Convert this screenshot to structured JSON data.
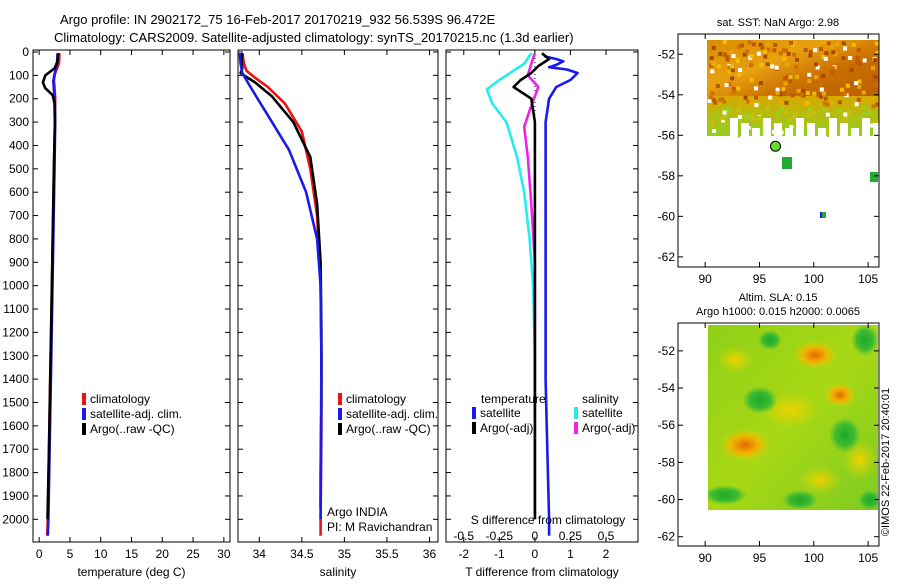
{
  "header": {
    "line1": "Argo profile: IN 2902172_75 16-Feb-2017 20170219_932 56.539S 96.472E",
    "line2": "Climatology: CARS2009. Satellite-adjusted climatology: synTS_20170215.nc (1.3d earlier)"
  },
  "colors": {
    "climatology": "#ee1111",
    "satellite": "#1a1aee",
    "argo": "#000000",
    "sat_salinity": "#22eeee",
    "argo_salinity": "#ee22ee"
  },
  "chart_data": [
    {
      "type": "line",
      "id": "temperature",
      "xlabel": "temperature (deg C)",
      "ylabel": "",
      "xlim": [
        -1,
        31
      ],
      "ylim": [
        2080,
        0
      ],
      "xticks": [
        0,
        5,
        10,
        15,
        20,
        25,
        30
      ],
      "xticklabels": [
        "0",
        "5",
        "10",
        "15",
        "20",
        "25",
        "30"
      ],
      "yticks": [
        0,
        100,
        200,
        300,
        400,
        500,
        600,
        700,
        800,
        900,
        1000,
        1100,
        1200,
        1300,
        1400,
        1500,
        1600,
        1700,
        1800,
        1900,
        2000
      ],
      "yticklabels": [
        "0",
        "100",
        "200",
        "300",
        "400",
        "500",
        "600",
        "700",
        "800",
        "900",
        "1000",
        "1100",
        "1200",
        "1300",
        "1400",
        "1500",
        "1600",
        "1700",
        "1800",
        "1900",
        "2000"
      ],
      "legend": [
        "climatology",
        "satellite-adj. clim.",
        "Argo(..raw -QC)"
      ],
      "series": [
        {
          "name": "climatology",
          "color_key": "climatology",
          "points": [
            [
              3.3,
              5
            ],
            [
              3.2,
              50
            ],
            [
              2.6,
              90
            ],
            [
              2.4,
              120
            ],
            [
              2.5,
              150
            ],
            [
              2.6,
              200
            ],
            [
              2.55,
              300
            ],
            [
              2.4,
              500
            ],
            [
              2.2,
              800
            ],
            [
              2.0,
              1100
            ],
            [
              1.8,
              1400
            ],
            [
              1.6,
              1700
            ],
            [
              1.4,
              2000
            ],
            [
              1.3,
              2070
            ]
          ]
        },
        {
          "name": "satellite-adj. clim.",
          "color_key": "satellite",
          "points": [
            [
              3.0,
              5
            ],
            [
              2.9,
              50
            ],
            [
              2.5,
              95
            ],
            [
              2.3,
              125
            ],
            [
              2.4,
              160
            ],
            [
              2.55,
              220
            ],
            [
              2.6,
              300
            ],
            [
              2.5,
              500
            ],
            [
              2.3,
              800
            ],
            [
              2.1,
              1100
            ],
            [
              1.9,
              1400
            ],
            [
              1.7,
              1700
            ],
            [
              1.5,
              2000
            ],
            [
              1.4,
              2070
            ]
          ]
        },
        {
          "name": "Argo(..raw -QC)",
          "color_key": "argo",
          "points": [
            [
              3.1,
              5
            ],
            [
              3.0,
              40
            ],
            [
              2.5,
              70
            ],
            [
              1.0,
              100
            ],
            [
              0.6,
              130
            ],
            [
              1.0,
              155
            ],
            [
              2.2,
              185
            ],
            [
              2.5,
              220
            ],
            [
              2.55,
              300
            ],
            [
              2.4,
              500
            ],
            [
              2.2,
              800
            ],
            [
              2.0,
              1100
            ],
            [
              1.8,
              1400
            ],
            [
              1.6,
              1700
            ],
            [
              1.35,
              2000
            ]
          ]
        }
      ]
    },
    {
      "type": "line",
      "id": "salinity",
      "xlabel": "salinity",
      "xlim": [
        33.75,
        36.1
      ],
      "ylim": [
        2080,
        0
      ],
      "xticks": [
        34,
        34.5,
        35,
        35.5,
        36
      ],
      "xticklabels": [
        "34",
        "34.5",
        "35",
        "35.5",
        "36"
      ],
      "legend": [
        "climatology",
        "satellite-adj. clim.",
        "Argo(..raw -QC)"
      ],
      "annotation": [
        "Argo INDIA",
        "PI: M Ravichandran"
      ],
      "series": [
        {
          "name": "climatology",
          "color_key": "climatology",
          "points": [
            [
              33.8,
              5
            ],
            [
              33.82,
              50
            ],
            [
              33.85,
              80
            ],
            [
              33.95,
              110
            ],
            [
              34.1,
              150
            ],
            [
              34.3,
              220
            ],
            [
              34.5,
              340
            ],
            [
              34.6,
              500
            ],
            [
              34.68,
              700
            ],
            [
              34.72,
              1000
            ],
            [
              34.73,
              1300
            ],
            [
              34.73,
              1600
            ],
            [
              34.72,
              2000
            ],
            [
              34.72,
              2070
            ]
          ]
        },
        {
          "name": "satellite-adj. clim.",
          "color_key": "satellite",
          "points": [
            [
              33.77,
              5
            ],
            [
              33.78,
              50
            ],
            [
              33.8,
              90
            ],
            [
              33.88,
              140
            ],
            [
              33.98,
              200
            ],
            [
              34.15,
              300
            ],
            [
              34.35,
              420
            ],
            [
              34.55,
              600
            ],
            [
              34.68,
              800
            ],
            [
              34.72,
              1000
            ],
            [
              34.73,
              1300
            ],
            [
              34.72,
              2000
            ]
          ]
        },
        {
          "name": "Argo(..raw -QC)",
          "color_key": "argo",
          "points": [
            [
              33.8,
              5
            ],
            [
              33.79,
              40
            ],
            [
              33.8,
              70
            ],
            [
              33.78,
              90
            ],
            [
              33.82,
              100
            ],
            [
              33.95,
              130
            ],
            [
              34.15,
              190
            ],
            [
              34.4,
              300
            ],
            [
              34.6,
              450
            ],
            [
              34.68,
              650
            ],
            [
              34.72,
              900
            ],
            [
              34.73,
              1200
            ],
            [
              34.73,
              1500
            ],
            [
              34.72,
              1800
            ],
            [
              34.72,
              1950
            ]
          ]
        }
      ]
    },
    {
      "type": "line",
      "id": "difference",
      "xlabel": "T difference from climatology",
      "xlabel_top": "S difference from climatology",
      "xlim": [
        -2.5,
        2.9
      ],
      "ylim": [
        2080,
        0
      ],
      "xticks": [
        -2,
        -1,
        0,
        1,
        2
      ],
      "xticklabels": [
        "-2",
        "-1",
        "0",
        "1",
        "2"
      ],
      "s_ticks": [
        -0.5,
        -0.25,
        0,
        0.25,
        0.5
      ],
      "s_ticklabels": [
        "-0.5",
        "-0.25",
        "0",
        "0.25",
        "0.5"
      ],
      "legend_temperature_title": "temperature",
      "legend_salinity_title": "salinity",
      "legend_temperature": [
        "satellite",
        "Argo(-adj)"
      ],
      "legend_salinity": [
        "satellite",
        "Argo(-adj)"
      ],
      "series": [
        {
          "name": "T satellite",
          "color_key": "satellite",
          "points": [
            [
              0.2,
              5
            ],
            [
              0.3,
              20
            ],
            [
              0.6,
              30
            ],
            [
              0.8,
              40
            ],
            [
              0.6,
              55
            ],
            [
              0.4,
              65
            ],
            [
              0.9,
              75
            ],
            [
              1.2,
              90
            ],
            [
              1.0,
              120
            ],
            [
              0.6,
              150
            ],
            [
              0.4,
              200
            ],
            [
              0.3,
              300
            ],
            [
              0.3,
              500
            ],
            [
              0.3,
              800
            ],
            [
              0.3,
              1100
            ],
            [
              0.3,
              1400
            ],
            [
              0.35,
              1700
            ],
            [
              0.4,
              2000
            ],
            [
              0.4,
              2070
            ]
          ]
        },
        {
          "name": "T Argo(-adj)",
          "color_key": "argo",
          "points": [
            [
              0.2,
              5
            ],
            [
              0.4,
              30
            ],
            [
              0.1,
              60
            ],
            [
              -0.1,
              90
            ],
            [
              -0.4,
              120
            ],
            [
              -0.6,
              150
            ],
            [
              -0.4,
              170
            ],
            [
              -0.1,
              200
            ],
            [
              0.0,
              300
            ],
            [
              0.0,
              500
            ],
            [
              0.0,
              900
            ],
            [
              0.0,
              1300
            ],
            [
              0.0,
              1700
            ],
            [
              0.0,
              2000
            ]
          ]
        },
        {
          "name": "S satellite",
          "color_key": "sat_salinity",
          "points": [
            [
              -0.1,
              5
            ],
            [
              -0.3,
              50
            ],
            [
              -1.0,
              120
            ],
            [
              -1.35,
              160
            ],
            [
              -1.2,
              220
            ],
            [
              -0.8,
              300
            ],
            [
              -0.5,
              450
            ],
            [
              -0.3,
              600
            ],
            [
              -0.15,
              800
            ],
            [
              -0.05,
              1000
            ],
            [
              0.0,
              1300
            ],
            [
              0.0,
              2000
            ]
          ]
        },
        {
          "name": "S Argo(-adj)",
          "color_key": "argo_salinity",
          "points": [
            [
              0.0,
              5
            ],
            [
              -0.1,
              50
            ],
            [
              -0.2,
              100
            ],
            [
              0.1,
              150
            ],
            [
              -0.1,
              230
            ],
            [
              -0.3,
              320
            ],
            [
              -0.2,
              450
            ],
            [
              -0.1,
              650
            ],
            [
              0.0,
              900
            ],
            [
              0.0,
              1300
            ],
            [
              0.0,
              1700
            ],
            [
              0.0,
              2000
            ]
          ]
        }
      ]
    },
    {
      "type": "heatmap",
      "id": "sst_map",
      "title": "sat. SST: NaN Argo: 2.98",
      "xlim": [
        87.5,
        106
      ],
      "ylim": [
        -62.5,
        -51
      ],
      "xticks": [
        90,
        95,
        100,
        105
      ],
      "xticklabels": [
        "90",
        "95",
        "100",
        "105"
      ],
      "yticks": [
        -52,
        -54,
        -56,
        -58,
        -60,
        -62
      ],
      "yticklabels": [
        "-52",
        "-54",
        "-56",
        "-58",
        "-60",
        "-62"
      ],
      "argo_position": [
        96.47,
        -56.54
      ]
    },
    {
      "type": "heatmap",
      "id": "sla_map",
      "title_line1": "Altim. SLA: 0.15",
      "title_line2": "Argo h1000: 0.015 h2000: 0.0065",
      "xlim": [
        87.5,
        106
      ],
      "ylim": [
        -62.5,
        -50.5
      ],
      "xticks": [
        90,
        95,
        100,
        105
      ],
      "xticklabels": [
        "90",
        "95",
        "100",
        "105"
      ],
      "yticks": [
        -52,
        -54,
        -56,
        -58,
        -60,
        -62
      ],
      "yticklabels": [
        "-52",
        "-54",
        "-56",
        "-58",
        "-60",
        "-62"
      ]
    }
  ],
  "footer": {
    "watermark": "©IMOS 22-Feb-2017 20:40:01"
  }
}
